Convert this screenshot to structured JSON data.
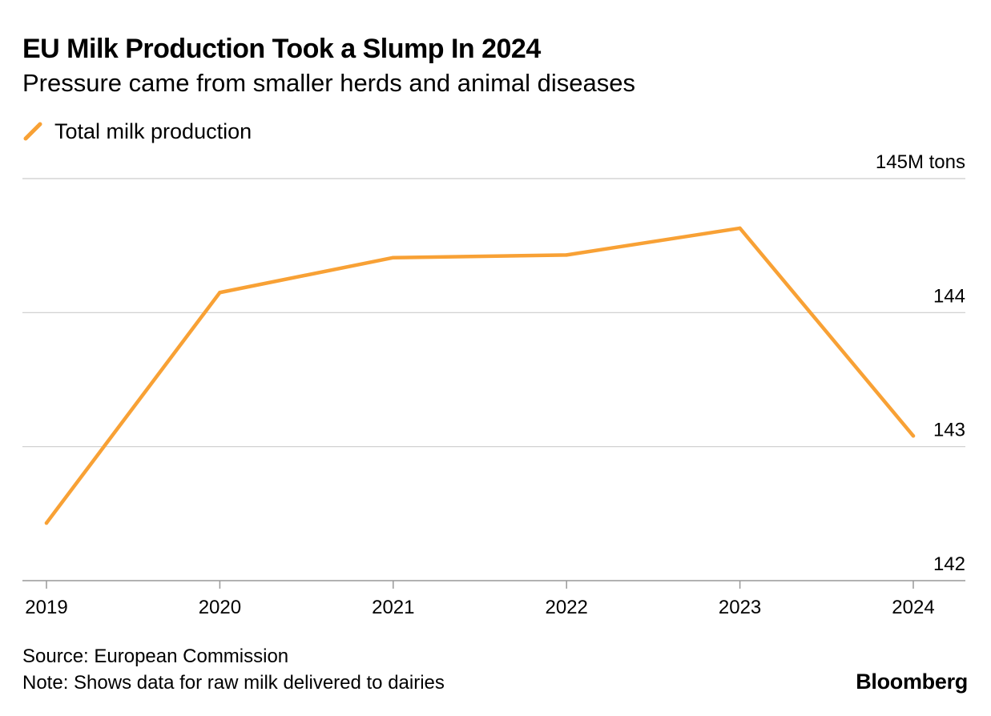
{
  "chart_data": {
    "type": "line",
    "title": "EU Milk Production Took a Slump In 2024",
    "subtitle": "Pressure came from smaller herds and animal diseases",
    "x": [
      "2019",
      "2020",
      "2021",
      "2022",
      "2023",
      "2024"
    ],
    "series": [
      {
        "name": "Total milk production",
        "color": "#f8a135",
        "values": [
          142.43,
          144.15,
          144.41,
          144.43,
          144.63,
          143.08
        ]
      }
    ],
    "ylim": [
      142,
      145
    ],
    "yticks": [
      {
        "value": 145,
        "label": "145M tons"
      },
      {
        "value": 144,
        "label": "144"
      },
      {
        "value": 143,
        "label": "143"
      },
      {
        "value": 142,
        "label": "142"
      }
    ],
    "xlabel": "",
    "ylabel": "",
    "grid": true,
    "legend": "top-left"
  },
  "footer": {
    "source": "Source: European Commission",
    "note": "Note: Shows data for raw milk delivered to dairies",
    "brand": "Bloomberg"
  },
  "colors": {
    "gridline": "#cccccc",
    "axis": "#999999"
  }
}
